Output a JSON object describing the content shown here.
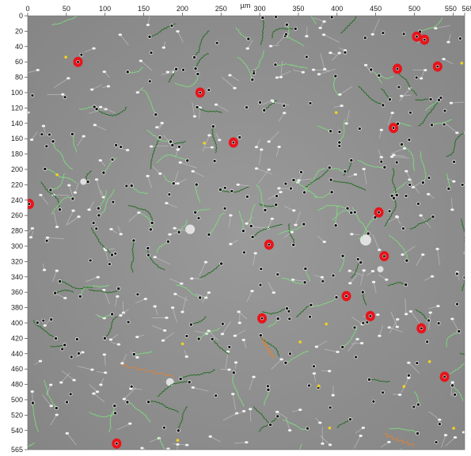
{
  "viewer": {
    "x_unit": "µm",
    "x_ticks": [
      "0",
      "50",
      "100",
      "150",
      "200",
      "250",
      "300",
      "350",
      "400",
      "450",
      "500",
      "550",
      "565"
    ],
    "y_ticks": [
      "0",
      "20",
      "40",
      "60",
      "80",
      "100",
      "120",
      "140",
      "160",
      "180",
      "200",
      "220",
      "240",
      "260",
      "280",
      "300",
      "320",
      "340",
      "360",
      "380",
      "400",
      "420",
      "440",
      "460",
      "480",
      "500",
      "520",
      "540",
      "565"
    ],
    "colors": {
      "background": "#8e8e8e",
      "track_dark": "#1f6b1f",
      "track_light": "#7fe07f",
      "immotile_marker": "#e8141b",
      "slow_marker": "#f2d21e",
      "orange_track": "#d9833a"
    },
    "red_markers": [
      {
        "x": 65,
        "y": 60
      },
      {
        "x": 503,
        "y": 27
      },
      {
        "x": 513,
        "y": 31
      },
      {
        "x": 478,
        "y": 69
      },
      {
        "x": 530,
        "y": 66
      },
      {
        "x": 223,
        "y": 100
      },
      {
        "x": 473,
        "y": 146
      },
      {
        "x": 266,
        "y": 165
      },
      {
        "x": 2,
        "y": 245
      },
      {
        "x": 454,
        "y": 256
      },
      {
        "x": 312,
        "y": 298
      },
      {
        "x": 461,
        "y": 313
      },
      {
        "x": 412,
        "y": 365
      },
      {
        "x": 303,
        "y": 394
      },
      {
        "x": 443,
        "y": 391
      },
      {
        "x": 509,
        "y": 407
      },
      {
        "x": 539,
        "y": 470
      },
      {
        "x": 115,
        "y": 557
      }
    ]
  }
}
